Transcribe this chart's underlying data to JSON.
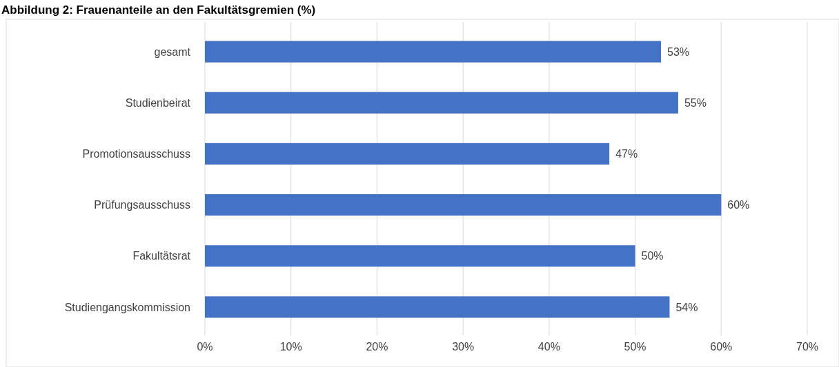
{
  "chart_data": {
    "type": "bar",
    "orientation": "horizontal",
    "title": "Abbildung 2: Frauenanteile an den Fakultätsgremien (%)",
    "categories": [
      "gesamt",
      "Studienbeirat",
      "Promotionsausschuss",
      "Prüfungsausschuss",
      "Fakultätsrat",
      "Studiengangskommission"
    ],
    "values": [
      53,
      55,
      47,
      60,
      50,
      54
    ],
    "value_labels": [
      "53%",
      "55%",
      "47%",
      "60%",
      "50%",
      "54%"
    ],
    "color": "#4472c4",
    "xlim": [
      0,
      70
    ],
    "xticks": [
      {
        "value": 0,
        "label": "0%"
      },
      {
        "value": 10,
        "label": "10%"
      },
      {
        "value": 20,
        "label": "20%"
      },
      {
        "value": 30,
        "label": "30%"
      },
      {
        "value": 40,
        "label": "40%"
      },
      {
        "value": 50,
        "label": "50%"
      },
      {
        "value": 60,
        "label": "60%"
      },
      {
        "value": 70,
        "label": "70%"
      }
    ],
    "grid": "x"
  }
}
